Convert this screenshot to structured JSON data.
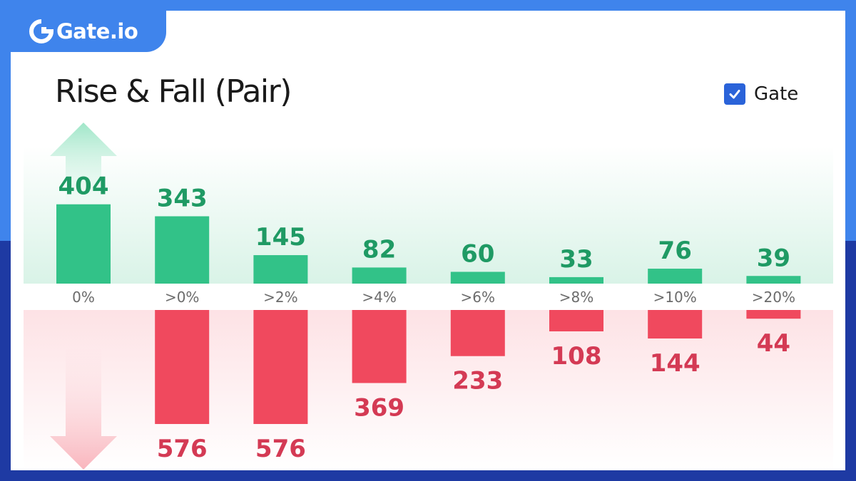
{
  "brand": {
    "logo_text": "Gate.io"
  },
  "legend": {
    "label": "Gate",
    "checked": true
  },
  "colors": {
    "rise": "#32c288",
    "fall": "#f0495e",
    "rise_text": "#1f9a64",
    "fall_text": "#d43a54",
    "tick": "#6b6b6b",
    "accent": "#2a63d9"
  },
  "chart_data": {
    "type": "bar",
    "title": "Rise & Fall (Pair)",
    "categories": [
      "0%",
      ">0%",
      ">2%",
      ">4%",
      ">6%",
      ">8%",
      ">10%",
      ">20%"
    ],
    "series": [
      {
        "name": "",
        "direction": "rise",
        "values": [
          404,
          343,
          145,
          82,
          60,
          33,
          76,
          39
        ]
      },
      {
        "name": "",
        "direction": "fall",
        "values": [
          null,
          576,
          576,
          369,
          233,
          108,
          144,
          44
        ]
      }
    ],
    "legend_position": "top-right",
    "grid": false
  }
}
